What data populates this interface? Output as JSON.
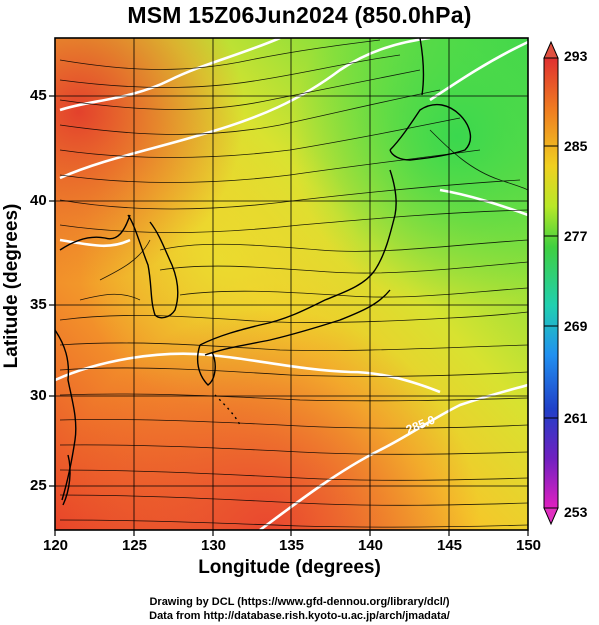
{
  "title": "MSM 15Z06Jun2024 (850.0hPa)",
  "x_axis": {
    "label": "Longitude (degrees)",
    "ticks": [
      "120",
      "125",
      "130",
      "135",
      "140",
      "145",
      "150"
    ]
  },
  "y_axis": {
    "label": "Latitude  (degrees)",
    "ticks": [
      "45",
      "40",
      "35",
      "30",
      "25"
    ]
  },
  "colorbar": {
    "ticks": [
      "293",
      "285",
      "277",
      "269",
      "261",
      "253"
    ],
    "colors": [
      "#e0302e",
      "#f07a20",
      "#f0c020",
      "#c8e820",
      "#40d040",
      "#20d8c0",
      "#2080f0",
      "#2030c0",
      "#8020c0",
      "#e020c0"
    ]
  },
  "contour_label": "285.0",
  "credits": {
    "line1": "Drawing by DCL (https://www.gfd-dennou.org/library/dcl/)",
    "line2": "Data from http://database.rish.kyoto-u.ac.jp/arch/jmadata/"
  }
}
